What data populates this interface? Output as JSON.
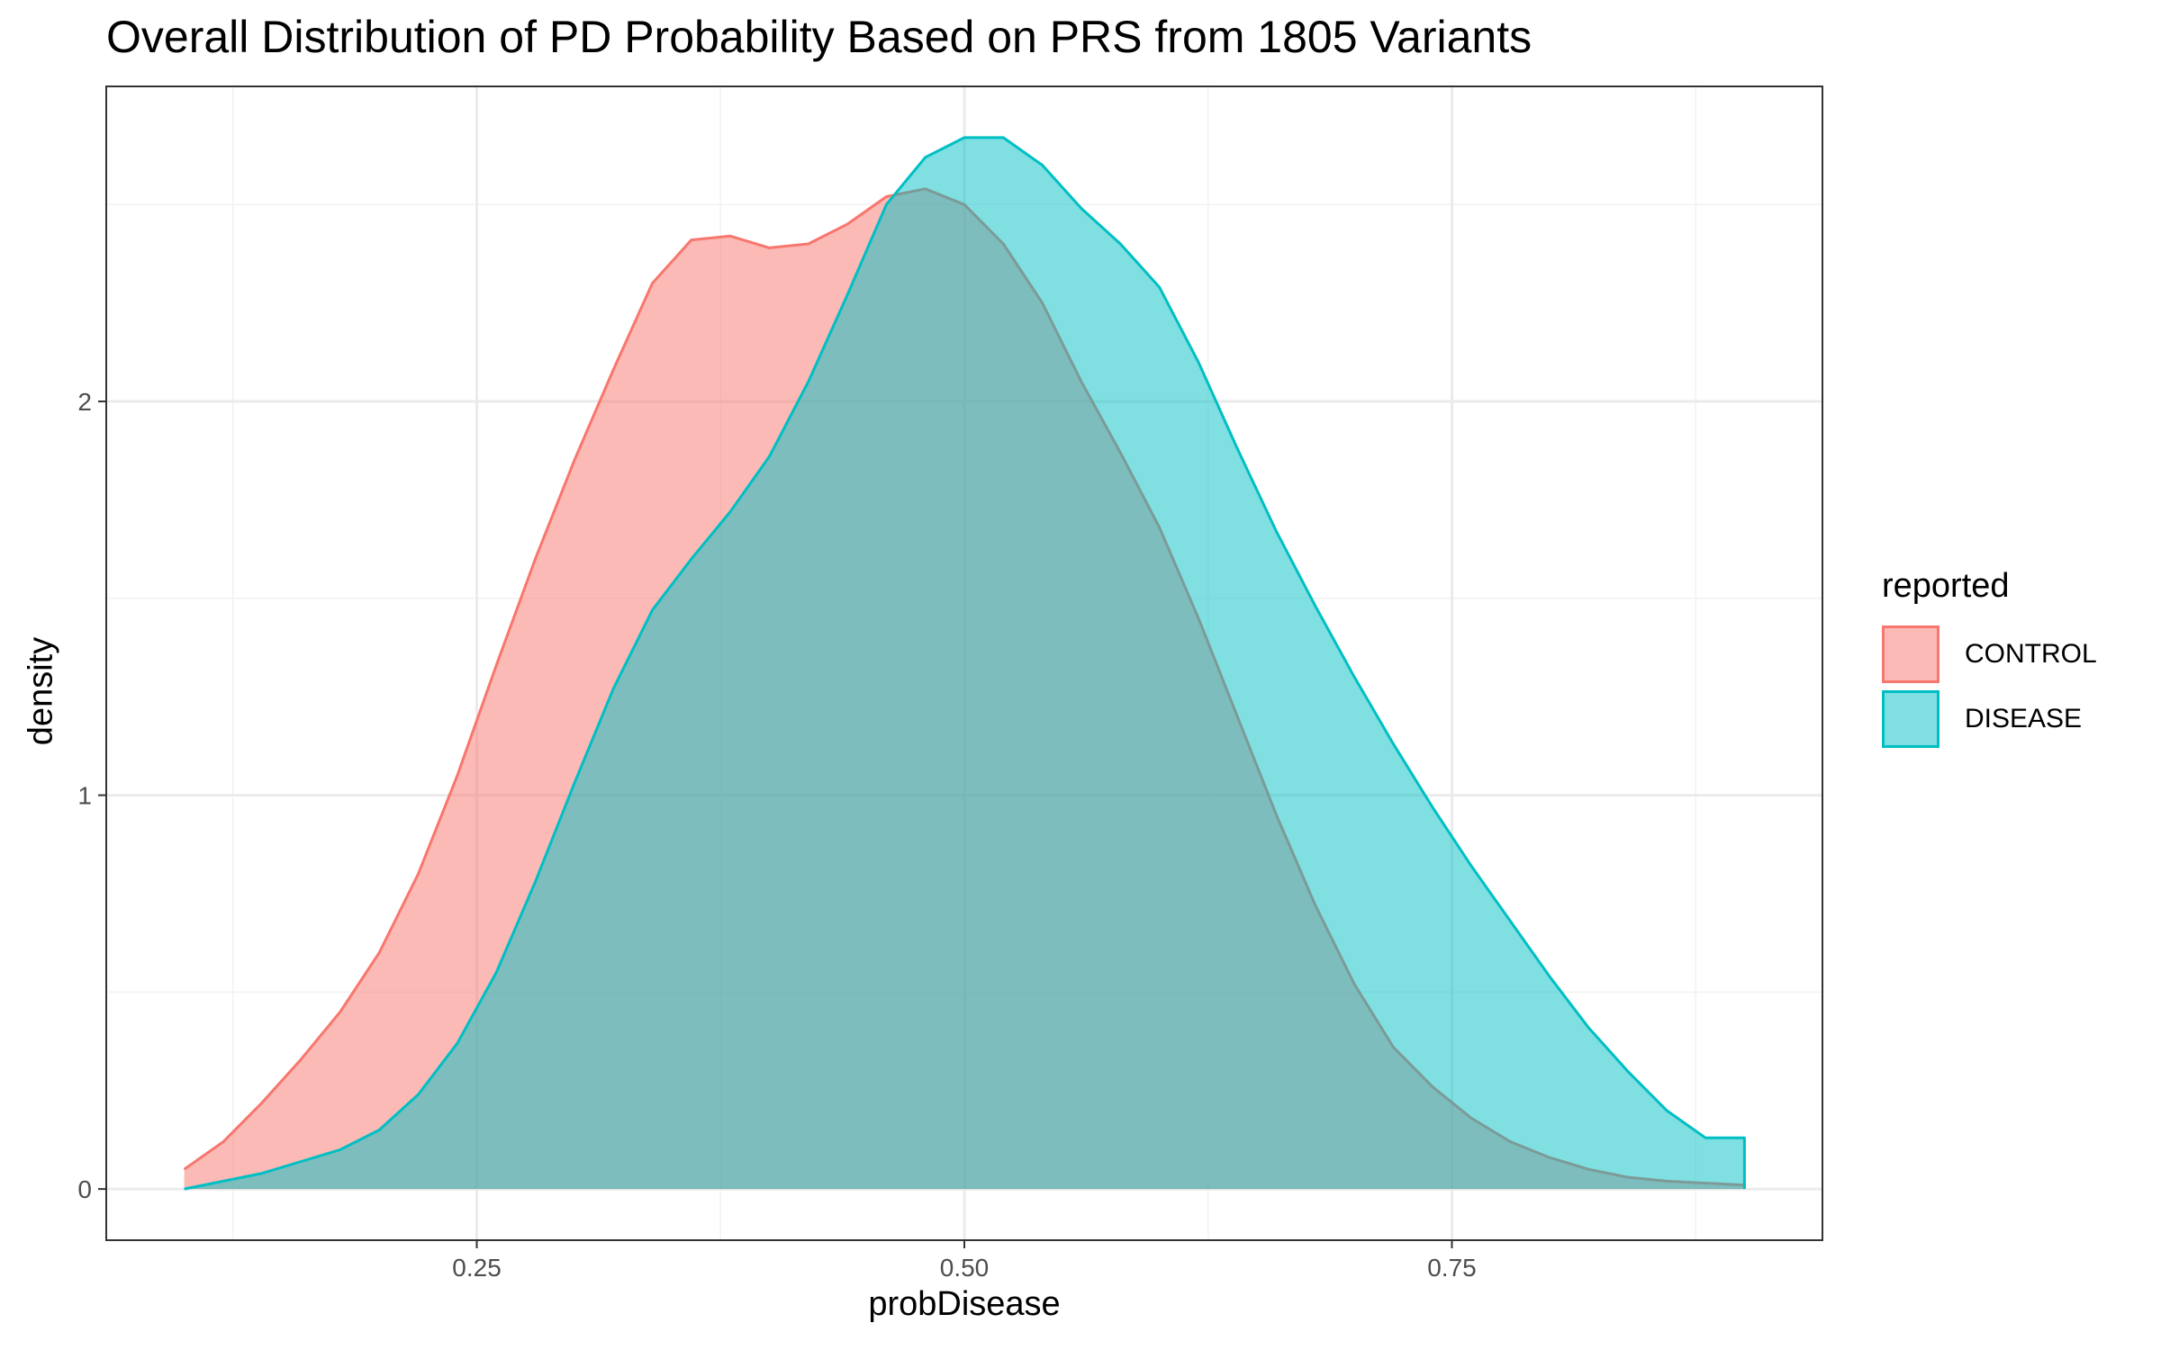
{
  "chart_data": {
    "type": "area",
    "title": "Overall Distribution of PD Probability Based on PRS from 1805 Variants",
    "xlabel": "probDisease",
    "ylabel": "density",
    "xlim": [
      0.06,
      0.94
    ],
    "ylim": [
      -0.13,
      2.8
    ],
    "x_ticks": [
      0.25,
      0.5,
      0.75
    ],
    "x_tick_labels": [
      "0.25",
      "0.50",
      "0.75"
    ],
    "y_ticks": [
      0,
      1,
      2
    ],
    "y_tick_labels": [
      "0",
      "1",
      "2"
    ],
    "grid": true,
    "legend": {
      "title": "reported",
      "position": "right"
    },
    "series": [
      {
        "name": "CONTROL",
        "color": "#F8766D",
        "x": [
          0.1,
          0.12,
          0.14,
          0.16,
          0.18,
          0.2,
          0.22,
          0.24,
          0.26,
          0.28,
          0.3,
          0.32,
          0.34,
          0.36,
          0.38,
          0.4,
          0.42,
          0.44,
          0.46,
          0.48,
          0.5,
          0.52,
          0.54,
          0.56,
          0.58,
          0.6,
          0.62,
          0.64,
          0.66,
          0.68,
          0.7,
          0.72,
          0.74,
          0.76,
          0.78,
          0.8,
          0.82,
          0.84,
          0.86,
          0.88,
          0.9
        ],
        "y": [
          0.05,
          0.12,
          0.22,
          0.33,
          0.45,
          0.6,
          0.8,
          1.05,
          1.33,
          1.6,
          1.85,
          2.08,
          2.3,
          2.41,
          2.42,
          2.39,
          2.4,
          2.45,
          2.52,
          2.54,
          2.5,
          2.4,
          2.25,
          2.05,
          1.87,
          1.68,
          1.45,
          1.2,
          0.95,
          0.72,
          0.52,
          0.36,
          0.26,
          0.18,
          0.12,
          0.08,
          0.05,
          0.03,
          0.02,
          0.015,
          0.01
        ]
      },
      {
        "name": "DISEASE",
        "color": "#00BFC4",
        "x": [
          0.1,
          0.12,
          0.14,
          0.16,
          0.18,
          0.2,
          0.22,
          0.24,
          0.26,
          0.28,
          0.3,
          0.32,
          0.34,
          0.36,
          0.38,
          0.4,
          0.42,
          0.44,
          0.46,
          0.48,
          0.5,
          0.52,
          0.54,
          0.56,
          0.58,
          0.6,
          0.62,
          0.64,
          0.66,
          0.68,
          0.7,
          0.72,
          0.74,
          0.76,
          0.78,
          0.8,
          0.82,
          0.84,
          0.86,
          0.88,
          0.9
        ],
        "y": [
          0.0,
          0.02,
          0.04,
          0.07,
          0.1,
          0.15,
          0.24,
          0.37,
          0.55,
          0.78,
          1.03,
          1.27,
          1.47,
          1.6,
          1.72,
          1.86,
          2.05,
          2.27,
          2.5,
          2.62,
          2.67,
          2.67,
          2.6,
          2.49,
          2.4,
          2.29,
          2.1,
          1.88,
          1.67,
          1.48,
          1.3,
          1.13,
          0.97,
          0.82,
          0.68,
          0.54,
          0.41,
          0.3,
          0.2,
          0.13,
          0.13
        ]
      }
    ]
  }
}
